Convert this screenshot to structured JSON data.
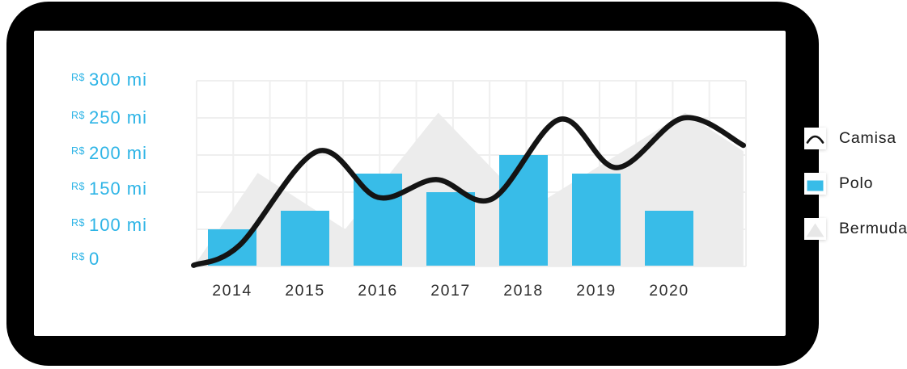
{
  "colors": {
    "bar_blue": "#38bce8",
    "line_black": "#141414",
    "area_gray": "#ececec",
    "grid_gray": "#efefef",
    "axis_blue": "#2db4e6",
    "year_text": "#2e2e2e",
    "legend_text": "#1d1d1d",
    "card_bg": "#ffffff",
    "shadow_bg": "#000000"
  },
  "chart_data": {
    "type": "combo",
    "title": "",
    "categories": [
      "2014",
      "2015",
      "2016",
      "2017",
      "2018",
      "2019",
      "2020"
    ],
    "y_axis": {
      "currency": "R$",
      "unit": "mi",
      "range": [
        0,
        300
      ],
      "ticks": [
        {
          "prefix": "R$",
          "label": "300 mi",
          "value": 300
        },
        {
          "prefix": "R$",
          "label": "250 mi",
          "value": 250
        },
        {
          "prefix": "R$",
          "label": "200 mi",
          "value": 200
        },
        {
          "prefix": "R$",
          "label": "150 mi",
          "value": 150
        },
        {
          "prefix": "R$",
          "label": "100 mi",
          "value": 100
        },
        {
          "prefix": "R$",
          "label": "0",
          "value": 0
        }
      ]
    },
    "grid": true,
    "legend_position": "right",
    "series": [
      {
        "name": "Bermuda",
        "type": "area",
        "color": "#ececec",
        "points": [
          [
            2013.47,
            0
          ],
          [
            2014.35,
            176
          ],
          [
            2015.55,
            100
          ],
          [
            2016.83,
            257
          ],
          [
            2018.1,
            128
          ],
          [
            2020.22,
            257
          ],
          [
            2021.02,
            205
          ]
        ]
      },
      {
        "name": "Polo",
        "type": "bar",
        "color": "#38bce8",
        "values": [
          100,
          125,
          175,
          150,
          200,
          175,
          125
        ]
      },
      {
        "name": "Camisa",
        "type": "line",
        "color": "#141414",
        "points": [
          [
            2013.47,
            3
          ],
          [
            2014.1,
            57
          ],
          [
            2015.17,
            205
          ],
          [
            2016.0,
            143
          ],
          [
            2016.8,
            167
          ],
          [
            2017.57,
            141
          ],
          [
            2018.5,
            248
          ],
          [
            2019.28,
            183
          ],
          [
            2020.2,
            250
          ],
          [
            2021.02,
            213
          ]
        ]
      }
    ],
    "legend": [
      {
        "label": "Camisa",
        "icon": "curve-line-icon"
      },
      {
        "label": "Polo",
        "icon": "blue-square-icon"
      },
      {
        "label": "Bermuda",
        "icon": "gray-triangle-icon"
      }
    ]
  }
}
